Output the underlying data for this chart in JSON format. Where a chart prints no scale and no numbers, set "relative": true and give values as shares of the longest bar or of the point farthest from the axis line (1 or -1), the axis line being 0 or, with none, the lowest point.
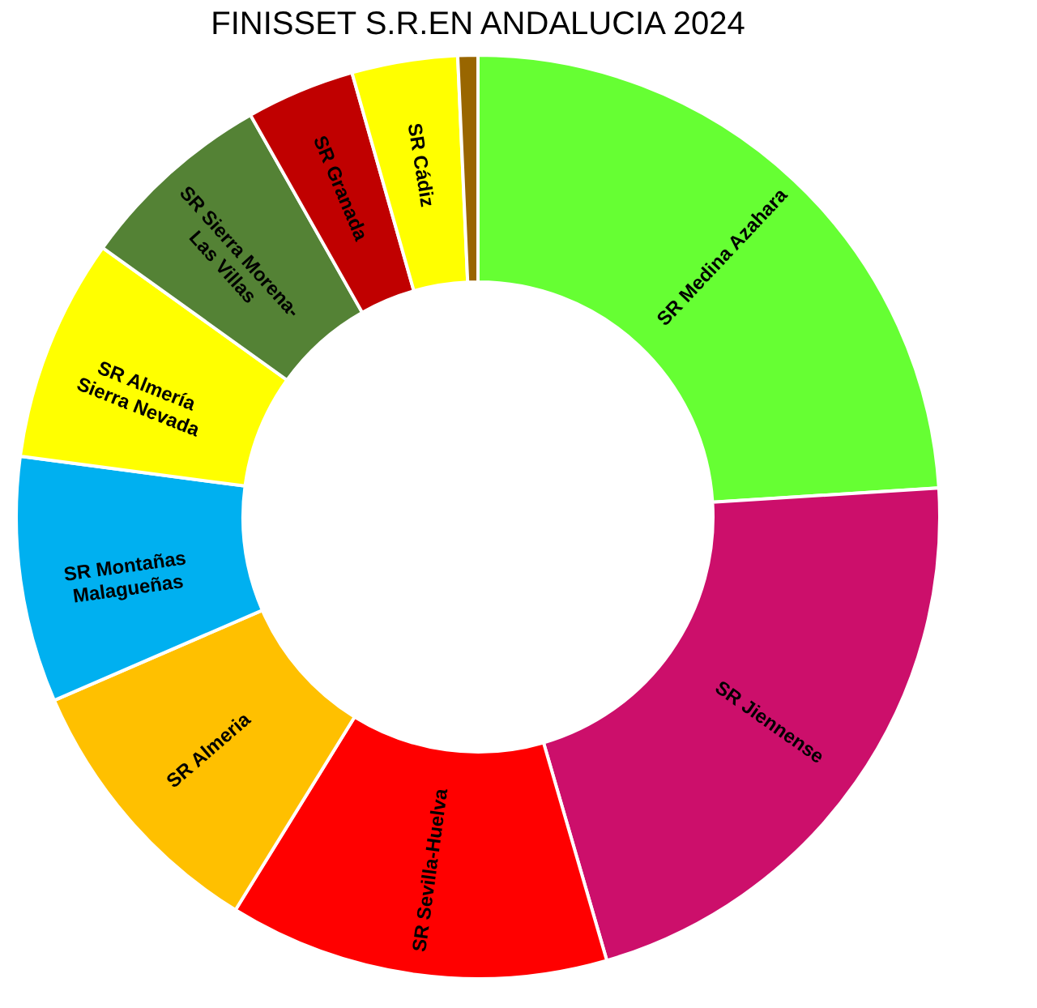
{
  "chart_data": {
    "type": "donut",
    "title": "FINISSET S.R.EN ANDALUCIA 2024",
    "relative": true,
    "legend": false,
    "categories": [
      "SR Medina Azahara",
      "SR Jiennense",
      "SR Sevilla-Huelva",
      "SR Almeria",
      "SR Montañas Malagueñas",
      "SR Almería Sierra Nevada",
      "SR Sierra Morena-Las Villas",
      "SR Granada",
      "SR Cádiz",
      null
    ],
    "values": [
      24.0,
      21.5,
      13.3,
      9.7,
      8.6,
      7.8,
      6.9,
      3.8,
      3.7,
      0.7
    ],
    "colors": [
      "#66ff33",
      "#cc0f6b",
      "#ff0000",
      "#ffc000",
      "#00b0f0",
      "#ffff00",
      "#548235",
      "#c00000",
      "#ffff00",
      "#996600"
    ]
  }
}
